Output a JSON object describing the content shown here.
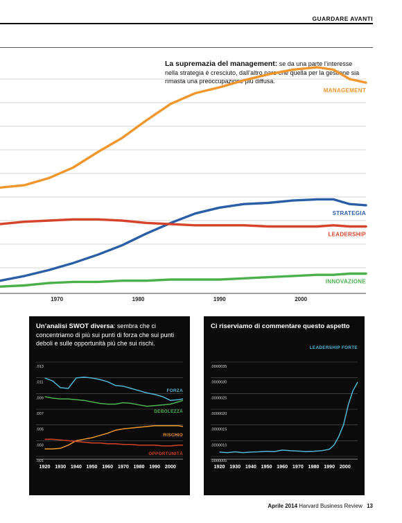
{
  "header": {
    "section": "GUARDARE AVANTI"
  },
  "main_chart": {
    "caption_bold": "La supremazia del management:",
    "caption_text": " se da una parte l’interesse nella strategia è cresciuto, dall’altro pare che quella per la gestione sia rimasta una preoccupazione più diffusa."
  },
  "swot_panel": {
    "title_bold": "Un’analisi SWOT diversa",
    "title_text": ": sembra che ci concentriamo di più sui punti di forza che sui punti deboli e sulle opportunità più che sui rischi."
  },
  "leadership_panel": {
    "title": "Ci riserviamo di commentare questo aspetto"
  },
  "footer": {
    "date": "Aprile 2014",
    "magazine": "Harvard Business Review",
    "page": "13"
  },
  "colors": {
    "management": "#f0962c",
    "strategia": "#2a5ea6",
    "leadership": "#d6432a",
    "innovazione": "#49b04a",
    "forza": "#53b6d6",
    "debolezza": "#4cb450",
    "rischio": "#f0962c",
    "opportunita": "#d6432a",
    "leadership_forte": "#53b6d6"
  },
  "chart_data": [
    {
      "type": "line",
      "x_ticks": [
        1970,
        1980,
        1990,
        2000
      ],
      "xlim": [
        1963,
        2008
      ],
      "grid": true,
      "series": [
        {
          "name": "MANAGEMENT",
          "x": [
            1963,
            1966,
            1969,
            1972,
            1975,
            1978,
            1981,
            1984,
            1987,
            1990,
            1993,
            1996,
            1999,
            2002,
            2004,
            2006,
            2008
          ],
          "values": [
            8.8,
            9.0,
            9.6,
            10.5,
            11.8,
            13.0,
            14.5,
            15.9,
            16.8,
            17.3,
            17.9,
            18.4,
            18.8,
            19.0,
            18.8,
            18.0,
            17.7
          ]
        },
        {
          "name": "STRATEGIA",
          "x": [
            1963,
            1966,
            1969,
            1972,
            1975,
            1978,
            1981,
            1984,
            1987,
            1990,
            1993,
            1996,
            1999,
            2002,
            2004,
            2006,
            2008
          ],
          "values": [
            0.9,
            1.3,
            1.8,
            2.4,
            3.1,
            3.9,
            4.9,
            5.8,
            6.6,
            7.1,
            7.4,
            7.5,
            7.7,
            7.8,
            7.8,
            7.4,
            7.3
          ]
        },
        {
          "name": "LEADERSHIP",
          "x": [
            1963,
            1966,
            1969,
            1972,
            1975,
            1978,
            1981,
            1984,
            1987,
            1990,
            1993,
            1996,
            1999,
            2002,
            2004,
            2006,
            2008
          ],
          "values": [
            5.7,
            5.9,
            6.0,
            6.1,
            6.1,
            6.0,
            5.8,
            5.7,
            5.6,
            5.6,
            5.6,
            5.5,
            5.5,
            5.5,
            5.6,
            5.5,
            5.5
          ]
        },
        {
          "name": "INNOVAZIONE",
          "x": [
            1963,
            1966,
            1969,
            1972,
            1975,
            1978,
            1981,
            1984,
            1987,
            1990,
            1993,
            1996,
            1999,
            2002,
            2004,
            2006,
            2008
          ],
          "values": [
            0.4,
            0.5,
            0.7,
            0.8,
            0.8,
            0.9,
            0.9,
            1.0,
            1.0,
            1.0,
            1.1,
            1.2,
            1.3,
            1.4,
            1.4,
            1.5,
            1.5
          ]
        }
      ]
    },
    {
      "type": "line",
      "y_ticks": [
        ".013",
        ".011",
        ".009",
        ".007",
        ".005",
        ".003",
        ".001"
      ],
      "x_ticks": [
        1920,
        1930,
        1940,
        1950,
        1960,
        1970,
        1980,
        1990,
        2000
      ],
      "xlim": [
        1918,
        2008
      ],
      "ylim": [
        0.0005,
        0.0135
      ],
      "grid": true,
      "series": [
        {
          "name": "FORZA",
          "x": [
            1920,
            1925,
            1930,
            1935,
            1940,
            1945,
            1950,
            1955,
            1960,
            1965,
            1970,
            1975,
            1980,
            1985,
            1990,
            1995,
            2000,
            2005,
            2008
          ],
          "values": [
            0.011,
            0.0106,
            0.0097,
            0.0096,
            0.011,
            0.0111,
            0.011,
            0.0108,
            0.0105,
            0.01,
            0.0099,
            0.0096,
            0.0093,
            0.009,
            0.0088,
            0.0085,
            0.008,
            0.0081,
            0.0082
          ]
        },
        {
          "name": "DEBOLEZZA",
          "x": [
            1920,
            1925,
            1930,
            1935,
            1940,
            1945,
            1950,
            1955,
            1960,
            1965,
            1970,
            1975,
            1980,
            1985,
            1990,
            1995,
            2000,
            2005,
            2008
          ],
          "values": [
            0.0085,
            0.0083,
            0.0082,
            0.0082,
            0.0081,
            0.008,
            0.0078,
            0.0076,
            0.0075,
            0.0075,
            0.0077,
            0.0076,
            0.0074,
            0.0072,
            0.0073,
            0.0074,
            0.0075,
            0.0078,
            0.008
          ]
        },
        {
          "name": "RISCHIO",
          "x": [
            1920,
            1925,
            1930,
            1935,
            1940,
            1945,
            1950,
            1955,
            1960,
            1965,
            1970,
            1975,
            1980,
            1985,
            1990,
            1995,
            2000,
            2005,
            2008
          ],
          "values": [
            0.0015,
            0.0015,
            0.0016,
            0.002,
            0.0026,
            0.0028,
            0.003,
            0.0033,
            0.0036,
            0.004,
            0.0042,
            0.0043,
            0.0044,
            0.0045,
            0.0046,
            0.0046,
            0.0046,
            0.0046,
            0.0045
          ]
        },
        {
          "name": "OPPORTUNITÀ",
          "x": [
            1920,
            1925,
            1930,
            1935,
            1940,
            1945,
            1950,
            1955,
            1960,
            1965,
            1970,
            1975,
            1980,
            1985,
            1990,
            1995,
            2000,
            2005,
            2008
          ],
          "values": [
            0.0028,
            0.0028,
            0.0027,
            0.0026,
            0.0025,
            0.0024,
            0.0023,
            0.0023,
            0.0022,
            0.0022,
            0.0021,
            0.0021,
            0.002,
            0.002,
            0.002,
            0.0019,
            0.0019,
            0.002,
            0.002
          ]
        }
      ]
    },
    {
      "type": "line",
      "y_ticks": [
        ".0000035",
        ".0000030",
        ".0000025",
        ".0000020",
        ".0000015",
        ".0000010",
        ".0000005"
      ],
      "x_ticks": [
        1920,
        1930,
        1940,
        1950,
        1960,
        1970,
        1980,
        1990,
        2000
      ],
      "xlim": [
        1918,
        2008
      ],
      "ylim": [
        2e-07,
        3.6e-06
      ],
      "grid": true,
      "series": [
        {
          "name": "LEADERSHIP FORTE",
          "x": [
            1920,
            1925,
            1930,
            1935,
            1940,
            1945,
            1950,
            1955,
            1960,
            1965,
            1970,
            1975,
            1980,
            1985,
            1990,
            1993,
            1996,
            1999,
            2002,
            2005,
            2008
          ],
          "values": [
            3.5e-07,
            3.3e-07,
            3.6e-07,
            3.3e-07,
            3.5e-07,
            3.6e-07,
            3.8e-07,
            3.7e-07,
            4.2e-07,
            4e-07,
            3.9e-07,
            3.7e-07,
            3.8e-07,
            4e-07,
            4.5e-07,
            6e-07,
            9e-07,
            1.3e-06,
            2e-06,
            2.5e-06,
            2.8e-06
          ]
        }
      ]
    }
  ]
}
